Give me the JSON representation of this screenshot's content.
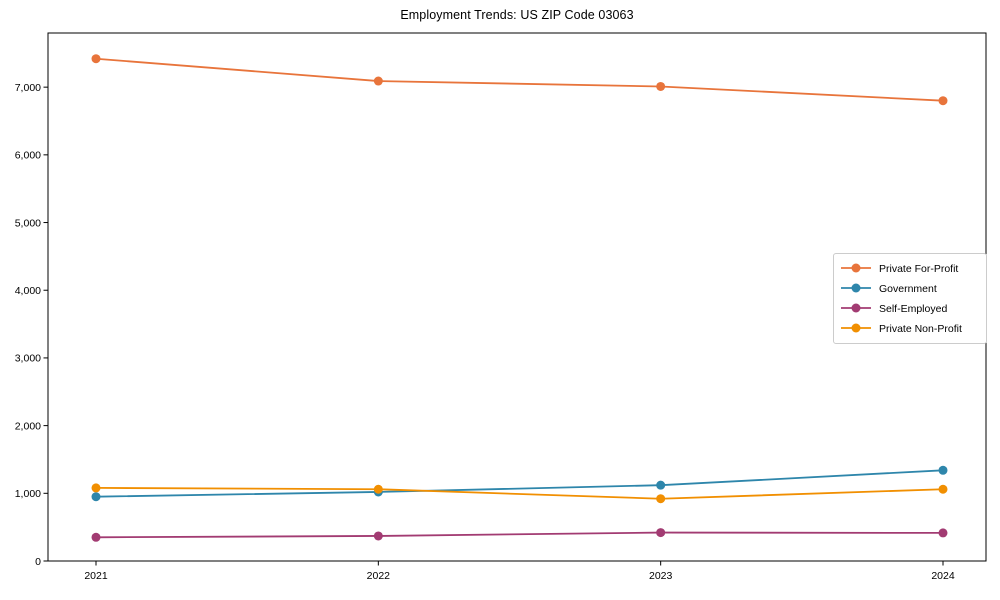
{
  "chart_data": {
    "type": "line",
    "title": "Employment Trends: US ZIP Code 03063",
    "xlabel": "",
    "ylabel": "",
    "x_categories": [
      "2021",
      "2022",
      "2023",
      "2024"
    ],
    "series": [
      {
        "name": "Private For-Profit",
        "color": "#E8743B",
        "values": [
          7420,
          7090,
          7010,
          6800
        ]
      },
      {
        "name": "Government",
        "color": "#2E86AB",
        "values": [
          950,
          1020,
          1120,
          1340
        ]
      },
      {
        "name": "Self-Employed",
        "color": "#A23B72",
        "values": [
          350,
          370,
          420,
          415
        ]
      },
      {
        "name": "Private Non-Profit",
        "color": "#F18F01",
        "values": [
          1080,
          1060,
          920,
          1060
        ]
      }
    ],
    "ylim": [
      0,
      7800
    ],
    "yticks": [
      0,
      1000,
      2000,
      3000,
      4000,
      5000,
      6000,
      7000
    ],
    "ytick_labels": [
      "0",
      "1,000",
      "2,000",
      "3,000",
      "4,000",
      "5,000",
      "6,000",
      "7,000"
    ],
    "grid": false,
    "legend_position": "center-right",
    "axis_color": "#000000",
    "legend_border_color": "#cccccc",
    "plot_background": "#ffffff"
  }
}
